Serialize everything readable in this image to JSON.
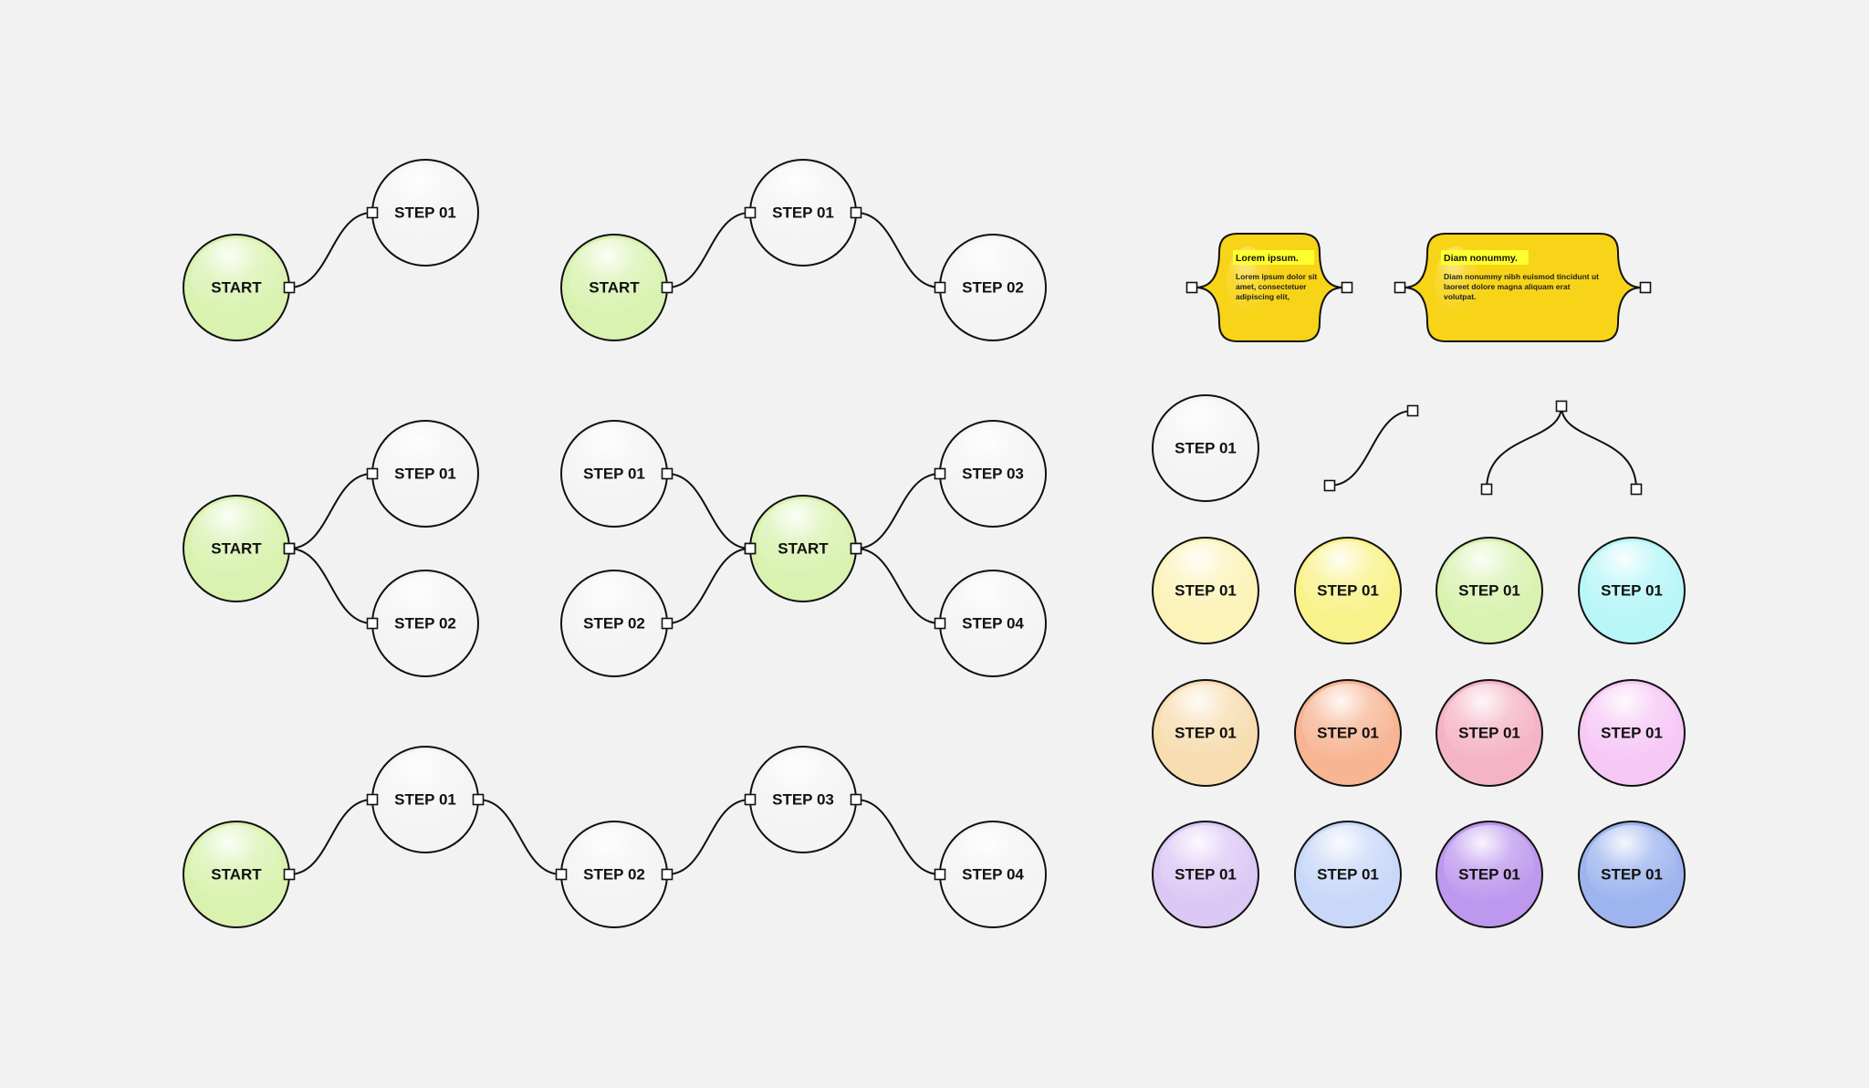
{
  "labels": {
    "start": "START",
    "step_01": "STEP 01",
    "step_02": "STEP 02",
    "step_03": "STEP 03",
    "step_04": "STEP 04"
  },
  "callouts": [
    {
      "title": "Lorem ipsum.",
      "body": [
        "Lorem ipsum dolor sit",
        "amet, consectetuer",
        "adipiscing elit,"
      ]
    },
    {
      "title": "Diam nonummy.",
      "body": [
        "Diam nonummy nibh euismod tincidunt ut",
        "laoreet dolore magna aliquam erat",
        "volutpat."
      ]
    }
  ],
  "colors": {
    "background": "#f2f2f2",
    "start_fill": "#d9f2b0",
    "step_fill": "#f4f4f4",
    "stroke": "#111111",
    "callout_fill": "#f7d417",
    "callout_highlight": "#ffff30",
    "swatches": [
      "#fbf3b8",
      "#f9f28a",
      "#d9f2b0",
      "#b8f6f8",
      "#f7ddb0",
      "#f7b594",
      "#f5b4c6",
      "#f6c8f6",
      "#dcc8f5",
      "#c9d8f8",
      "#bd98ee",
      "#9db4ee"
    ]
  },
  "swatch_label": "STEP 01"
}
